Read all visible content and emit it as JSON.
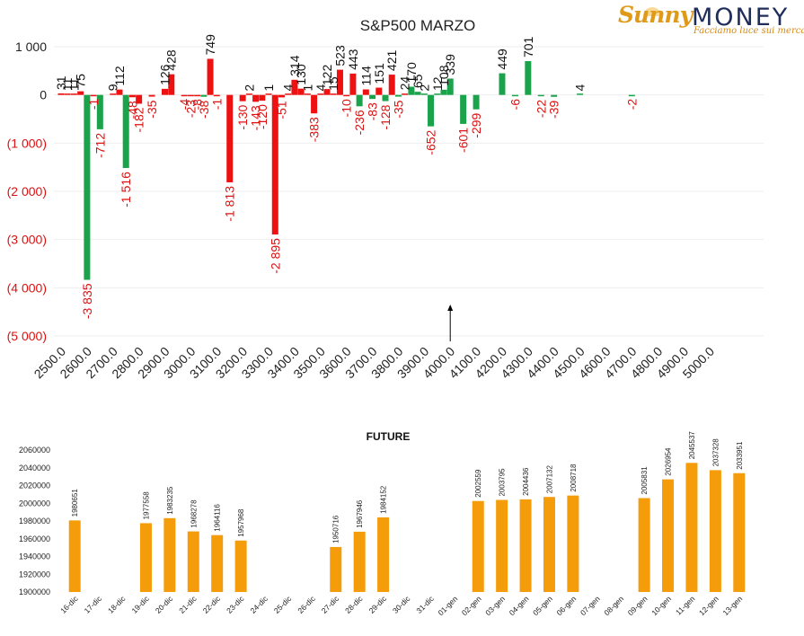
{
  "logo": {
    "brand_left": "Sunny",
    "brand_right": "MONEY",
    "tagline": "Facciamo luce sui mercati"
  },
  "colors": {
    "positive": "#1aa34a",
    "negative": "#ee1111",
    "future_bar": "#f59c0a",
    "label_positive": "#111111",
    "label_negative": "#dd1111"
  },
  "chart_data": [
    {
      "type": "bar",
      "title": "S&P500 MARZO",
      "xlabel": "",
      "ylabel": "",
      "ylim": [
        -5000,
        1000
      ],
      "y_ticks": [
        1000,
        0,
        -1000,
        -2000,
        -3000,
        -4000,
        -5000
      ],
      "y_tick_labels": [
        "1 000",
        "0",
        "(1 000)",
        "(2 000)",
        "(3 000)",
        "(4 000)",
        "(5 000)"
      ],
      "xlim": [
        2500,
        5000
      ],
      "x_ticks": [
        2500,
        2600,
        2700,
        2800,
        2900,
        3000,
        3100,
        3200,
        3300,
        3400,
        3500,
        3600,
        3700,
        3800,
        3900,
        4000,
        4100,
        4200,
        4300,
        4400,
        4500,
        4600,
        4700,
        4800,
        4900,
        5000
      ],
      "x_tick_labels": [
        "2500.0",
        "2600.0",
        "2700.0",
        "2800.0",
        "2900.0",
        "3000.0",
        "3100.0",
        "3200.0",
        "3300.0",
        "3400.0",
        "3500.0",
        "3600.0",
        "3700.0",
        "3800.0",
        "3900.0",
        "4000.0",
        "4100.0",
        "4200.0",
        "4300.0",
        "4400.0",
        "4500.0",
        "4600.0",
        "4700.0",
        "4800.0",
        "4900.0",
        "5000.0"
      ],
      "grid": true,
      "marker_strike": 4000,
      "series": [
        {
          "name": "Call",
          "x": [
            2500,
            2550,
            2600,
            2650,
            2700,
            2750,
            2800,
            2850,
            2900,
            2950,
            3000,
            3050,
            3100,
            3150,
            3200,
            3250,
            3300,
            3350,
            3400,
            3450,
            3500,
            3550,
            3600,
            3650,
            3700,
            3750,
            3800,
            3850,
            3900,
            3925,
            3950,
            3975,
            4000,
            4025,
            4050,
            4075,
            4100,
            4150,
            4200,
            4250,
            4300,
            4350,
            4400,
            4450,
            4500,
            4550,
            4600,
            4650,
            4700,
            4750,
            4900
          ],
          "values": [
            31,
            11,
            75,
            -1,
            9,
            112,
            -48,
            -182,
            -35,
            126,
            428,
            -4,
            -23,
            -8,
            749,
            -1,
            -1813,
            2,
            -130,
            -143,
            -120,
            1,
            -2895,
            4,
            314,
            130,
            1,
            -383,
            122,
            15,
            523,
            443,
            114,
            -83,
            151,
            -128,
            421,
            24,
            170,
            65,
            2,
            108,
            339,
            -601,
            -299,
            449,
            -6,
            701,
            -22,
            4,
            -2
          ],
          "colors": [
            "r",
            "g",
            "r",
            "g",
            "r",
            "r",
            "r",
            "r",
            "r",
            "r",
            "r",
            "r",
            "r",
            "r",
            "r",
            "r",
            "r",
            "r",
            "r",
            "r",
            "r",
            "r",
            "r",
            "r",
            "r",
            "r",
            "r",
            "r",
            "r",
            "r",
            "r",
            "r",
            "r",
            "r",
            "r",
            "r",
            "r",
            "g",
            "g",
            "g",
            "g",
            "g",
            "g",
            "g",
            "g",
            "g",
            "g",
            "g",
            "g",
            "g",
            "g"
          ]
        }
      ],
      "bars": [
        {
          "x": 2500,
          "v": 31,
          "c": "n"
        },
        {
          "x": 2525,
          "v": 11,
          "c": "n"
        },
        {
          "x": 2550,
          "v": 11,
          "c": "n"
        },
        {
          "x": 2575,
          "v": 75,
          "c": "n"
        },
        {
          "x": 2600,
          "v": -3835,
          "c": "p"
        },
        {
          "x": 2625,
          "v": -1,
          "c": "n"
        },
        {
          "x": 2650,
          "v": -712,
          "c": "p"
        },
        {
          "x": 2700,
          "v": 9,
          "c": "n"
        },
        {
          "x": 2725,
          "v": 112,
          "c": "n"
        },
        {
          "x": 2750,
          "v": -1516,
          "c": "p"
        },
        {
          "x": 2775,
          "v": -48,
          "c": "n"
        },
        {
          "x": 2800,
          "v": -182,
          "c": "n"
        },
        {
          "x": 2850,
          "v": -35,
          "c": "n"
        },
        {
          "x": 2900,
          "v": 126,
          "c": "n"
        },
        {
          "x": 2925,
          "v": 428,
          "c": "n"
        },
        {
          "x": 2975,
          "v": -4,
          "c": "n"
        },
        {
          "x": 3000,
          "v": -23,
          "c": "n"
        },
        {
          "x": 3025,
          "v": -8,
          "c": "n"
        },
        {
          "x": 3050,
          "v": -38,
          "c": "p"
        },
        {
          "x": 3075,
          "v": 749,
          "c": "n"
        },
        {
          "x": 3100,
          "v": -1,
          "c": "n"
        },
        {
          "x": 3150,
          "v": -1813,
          "c": "n"
        },
        {
          "x": 3200,
          "v": -130,
          "c": "n"
        },
        {
          "x": 3225,
          "v": 2,
          "c": "n"
        },
        {
          "x": 3250,
          "v": -143,
          "c": "n"
        },
        {
          "x": 3275,
          "v": -120,
          "c": "n"
        },
        {
          "x": 3300,
          "v": 1,
          "c": "n"
        },
        {
          "x": 3325,
          "v": -2895,
          "c": "n"
        },
        {
          "x": 3350,
          "v": -51,
          "c": "n"
        },
        {
          "x": 3375,
          "v": 4,
          "c": "n"
        },
        {
          "x": 3400,
          "v": 314,
          "c": "n"
        },
        {
          "x": 3425,
          "v": 130,
          "c": "n"
        },
        {
          "x": 3450,
          "v": 1,
          "c": "n"
        },
        {
          "x": 3475,
          "v": -383,
          "c": "n"
        },
        {
          "x": 3500,
          "v": 4,
          "c": "n"
        },
        {
          "x": 3525,
          "v": 122,
          "c": "n"
        },
        {
          "x": 3550,
          "v": 15,
          "c": "n"
        },
        {
          "x": 3575,
          "v": 523,
          "c": "n"
        },
        {
          "x": 3600,
          "v": -10,
          "c": "n"
        },
        {
          "x": 3625,
          "v": 443,
          "c": "n"
        },
        {
          "x": 3650,
          "v": -236,
          "c": "p"
        },
        {
          "x": 3675,
          "v": 114,
          "c": "n"
        },
        {
          "x": 3700,
          "v": -83,
          "c": "p"
        },
        {
          "x": 3725,
          "v": 151,
          "c": "n"
        },
        {
          "x": 3750,
          "v": -128,
          "c": "p"
        },
        {
          "x": 3775,
          "v": 421,
          "c": "n"
        },
        {
          "x": 3800,
          "v": -35,
          "c": "p"
        },
        {
          "x": 3825,
          "v": 24,
          "c": "n"
        },
        {
          "x": 3850,
          "v": 170,
          "c": "p"
        },
        {
          "x": 3875,
          "v": 65,
          "c": "p"
        },
        {
          "x": 3900,
          "v": 2,
          "c": "p"
        },
        {
          "x": 3925,
          "v": -652,
          "c": "p"
        },
        {
          "x": 3950,
          "v": 12,
          "c": "p"
        },
        {
          "x": 3975,
          "v": 108,
          "c": "p"
        },
        {
          "x": 4000,
          "v": 339,
          "c": "p"
        },
        {
          "x": 4050,
          "v": -601,
          "c": "p"
        },
        {
          "x": 4100,
          "v": -299,
          "c": "p"
        },
        {
          "x": 4200,
          "v": 449,
          "c": "p"
        },
        {
          "x": 4250,
          "v": -6,
          "c": "p"
        },
        {
          "x": 4300,
          "v": 701,
          "c": "p"
        },
        {
          "x": 4350,
          "v": -22,
          "c": "p"
        },
        {
          "x": 4400,
          "v": -39,
          "c": "p"
        },
        {
          "x": 4500,
          "v": 4,
          "c": "p"
        },
        {
          "x": 4700,
          "v": -2,
          "c": "p"
        }
      ]
    },
    {
      "type": "bar",
      "title": "FUTURE",
      "xlabel": "",
      "ylabel": "",
      "ylim": [
        1900000,
        2060000
      ],
      "y_ticks": [
        1900000,
        1920000,
        1940000,
        1960000,
        1980000,
        2000000,
        2020000,
        2040000,
        2060000
      ],
      "categories": [
        "16-dic",
        "17-dic",
        "18-dic",
        "19-dic",
        "20-dic",
        "21-dic",
        "22-dic",
        "23-dic",
        "24-dic",
        "25-dic",
        "26-dic",
        "27-dic",
        "28-dic",
        "29-dic",
        "30-dic",
        "31-dic",
        "01-gen",
        "02-gen",
        "03-gen",
        "04-gen",
        "05-gen",
        "06-gen",
        "07-gen",
        "08-gen",
        "09-gen",
        "10-gen",
        "11-gen",
        "12-gen",
        "13-gen"
      ],
      "values": [
        1980651,
        null,
        null,
        1977558,
        1983235,
        1968278,
        1964116,
        1957968,
        null,
        null,
        null,
        1950716,
        1967946,
        1984152,
        null,
        null,
        null,
        2002559,
        2003795,
        2004436,
        2007132,
        2008718,
        null,
        null,
        2005831,
        2026954,
        2045537,
        2037328,
        2033951
      ],
      "grid": false
    }
  ]
}
